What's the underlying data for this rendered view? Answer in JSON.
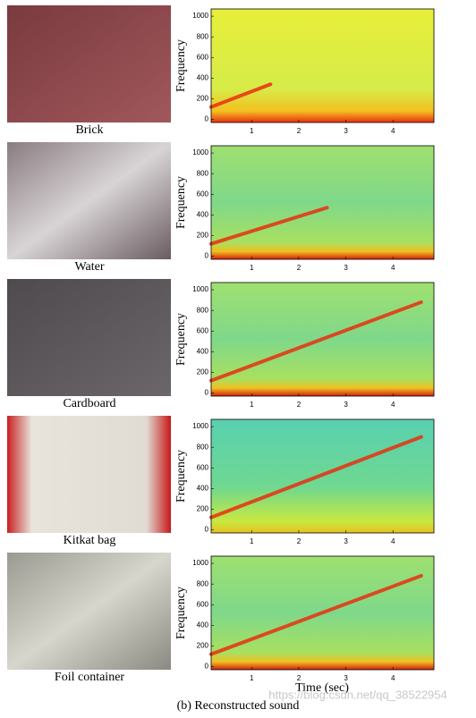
{
  "figure": {
    "caption": "(b) Reconstructed sound",
    "y_label": "Frequency",
    "x_label": "Time (sec)",
    "xlim": [
      0.14,
      4.87
    ],
    "ylim": [
      -30,
      1070
    ],
    "xticks": [
      1,
      2,
      3,
      4
    ],
    "yticks": [
      0,
      200,
      400,
      600,
      800,
      1000
    ],
    "panels": [
      {
        "label": "Brick"
      },
      {
        "label": "Water"
      },
      {
        "label": "Cardboard"
      },
      {
        "label": "Kitkat bag"
      },
      {
        "label": "Foil container"
      }
    ],
    "watermark": "https://blog.csdn.net/qq_38522954"
  }
}
